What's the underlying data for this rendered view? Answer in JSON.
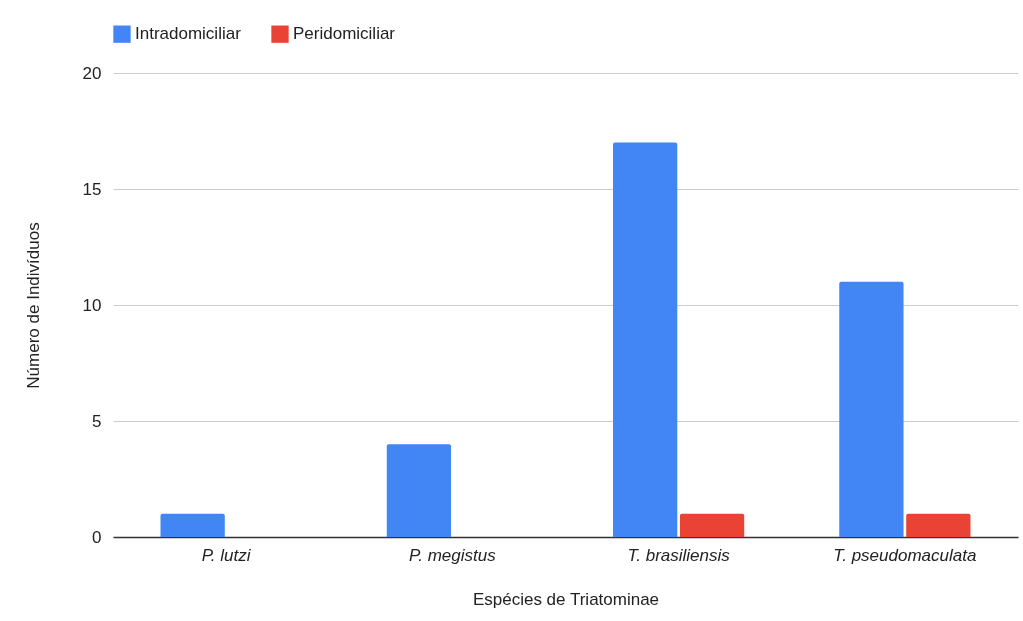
{
  "chart_data": {
    "type": "bar",
    "xlabel": "Espécies de Triatominae",
    "ylabel": "Número de Indivíduos",
    "categories": [
      "P. lutzi",
      "P. megistus",
      "T. brasiliensis",
      "T. pseudomaculata"
    ],
    "series": [
      {
        "name": "Intradomiciliar",
        "color": "#4285f4",
        "values": [
          1,
          4,
          17,
          11
        ]
      },
      {
        "name": "Peridomiciliar",
        "color": "#ea4335",
        "values": [
          0,
          0,
          1,
          1
        ]
      }
    ],
    "ylim": [
      0,
      20
    ],
    "yticks": [
      0,
      5,
      10,
      15,
      20
    ],
    "grid": "y",
    "legend": "top"
  }
}
